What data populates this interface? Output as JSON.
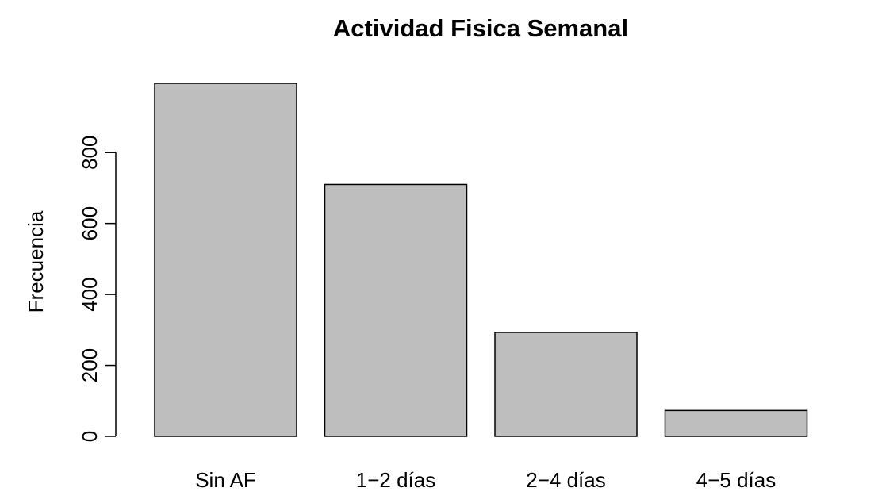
{
  "chart_data": {
    "type": "bar",
    "title": "Actividad Fisica Semanal",
    "xlabel": "",
    "ylabel": "Frecuencia",
    "categories": [
      "Sin AF",
      "1−2 días",
      "2−4 días",
      "4−5 días"
    ],
    "values": [
      995,
      710,
      293,
      73
    ],
    "ylim": [
      0,
      995
    ],
    "yticks": [
      0,
      200,
      400,
      600,
      800
    ],
    "bar_color": "#bebebe",
    "grid": false,
    "legend": "none"
  }
}
